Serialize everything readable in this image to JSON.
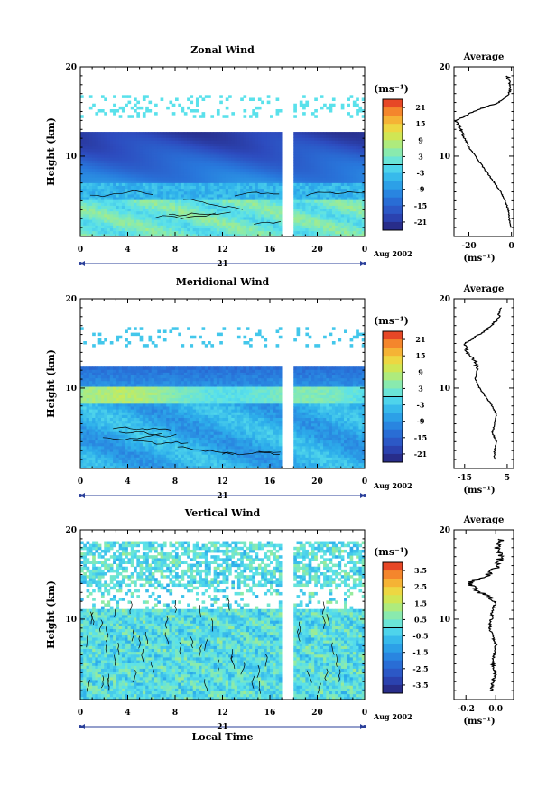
{
  "chart_data": [
    {
      "type": "heatmap",
      "title": "Zonal Wind",
      "xlabel": "",
      "ylabel": "Height (km)",
      "x_ticks": [
        "0",
        "4",
        "8",
        "12",
        "16",
        "20",
        "0"
      ],
      "y_ticks": [
        "10",
        "20"
      ],
      "xlim": [
        0,
        24
      ],
      "ylim": [
        1,
        20
      ],
      "date_day": "21",
      "date_label": "Aug 2002",
      "colorbar_label": "(ms⁻¹)",
      "colorbar_ticks": [
        "21",
        "15",
        "9",
        "3",
        "-3",
        "-9",
        "-15",
        "-21"
      ],
      "colorbar_range": [
        -24,
        24
      ],
      "data_gap_hours": [
        17.2,
        17.9
      ],
      "profile": {
        "title": "Average",
        "xlabel": "(ms⁻¹)",
        "x_ticks": [
          "-20",
          "0"
        ],
        "xlim": [
          -27,
          1
        ],
        "height_km": [
          2,
          3,
          4,
          5,
          6,
          7,
          8,
          9,
          10,
          11,
          12,
          13,
          14,
          15,
          16,
          17,
          18,
          19
        ],
        "values": [
          -0.5,
          -1.0,
          -1.5,
          -3,
          -5,
          -8,
          -11,
          -14,
          -17,
          -20,
          -22,
          -24,
          -26,
          -18,
          -6,
          -1,
          -0.5,
          -2
        ]
      }
    },
    {
      "type": "heatmap",
      "title": "Meridional Wind",
      "xlabel": "",
      "ylabel": "Height (km)",
      "x_ticks": [
        "0",
        "4",
        "8",
        "12",
        "16",
        "20",
        "0"
      ],
      "y_ticks": [
        "10",
        "20"
      ],
      "xlim": [
        0,
        24
      ],
      "ylim": [
        1,
        20
      ],
      "date_day": "21",
      "date_label": "Aug 2002",
      "colorbar_label": "(ms⁻¹)",
      "colorbar_ticks": [
        "21",
        "15",
        "9",
        "3",
        "-3",
        "-9",
        "-15",
        "-21"
      ],
      "colorbar_range": [
        -24,
        24
      ],
      "data_gap_hours": [
        17.2,
        17.9
      ],
      "profile": {
        "title": "Average",
        "xlabel": "(ms⁻¹)",
        "x_ticks": [
          "-15",
          "5"
        ],
        "xlim": [
          -20,
          8
        ],
        "height_km": [
          2,
          3,
          4,
          5,
          6,
          7,
          8,
          9,
          10,
          11,
          12,
          13,
          14,
          15,
          16,
          17,
          18,
          19
        ],
        "values": [
          -1,
          -1,
          0,
          -2,
          -1,
          0,
          -2,
          -5,
          -8,
          -10,
          -9,
          -10,
          -14,
          -15,
          -8,
          -2,
          1,
          2
        ]
      }
    },
    {
      "type": "heatmap",
      "title": "Vertical Wind",
      "xlabel": "Local Time",
      "ylabel": "Height (km)",
      "x_ticks": [
        "0",
        "4",
        "8",
        "12",
        "16",
        "20",
        "0"
      ],
      "y_ticks": [
        "10",
        "20"
      ],
      "xlim": [
        0,
        24
      ],
      "ylim": [
        1,
        20
      ],
      "date_day": "21",
      "date_label": "Aug 2002",
      "colorbar_label": "(ms⁻¹)",
      "colorbar_ticks": [
        "3.5",
        "2.5",
        "1.5",
        "0.5",
        "-0.5",
        "-1.5",
        "-2.5",
        "-3.5"
      ],
      "colorbar_range": [
        -4,
        4
      ],
      "data_gap_hours": [
        17.2,
        17.9
      ],
      "profile": {
        "title": "Average",
        "xlabel": "(ms⁻¹)",
        "x_ticks": [
          "-0.2",
          "0.0"
        ],
        "xlim": [
          -0.28,
          0.12
        ],
        "height_km": [
          2,
          3,
          4,
          5,
          6,
          7,
          8,
          9,
          10,
          11,
          12,
          13,
          14,
          15,
          16,
          17,
          18,
          19
        ],
        "values": [
          -0.03,
          -0.02,
          0.0,
          -0.02,
          -0.01,
          0.0,
          -0.02,
          -0.04,
          -0.03,
          -0.02,
          0.0,
          -0.1,
          -0.18,
          -0.05,
          0.02,
          0.03,
          0.0,
          0.04
        ]
      }
    }
  ]
}
